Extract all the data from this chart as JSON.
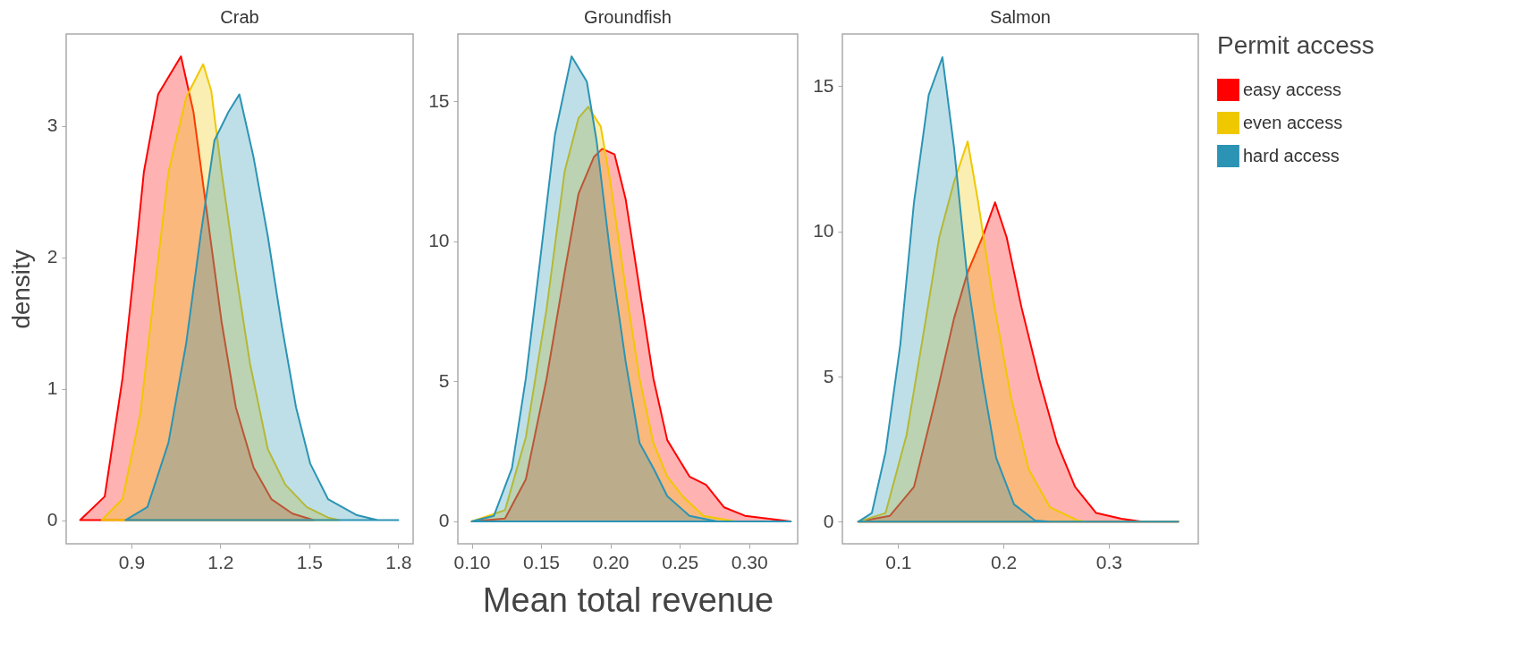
{
  "chart_data": [
    {
      "type": "area",
      "title": "Crab",
      "legend": "right",
      "ylabel": "density",
      "xlim": [
        0.68,
        1.85
      ],
      "ylim": [
        -0.18,
        3.7
      ],
      "xticks": [
        0.9,
        1.2,
        1.5,
        1.8
      ],
      "yticks": [
        0,
        1,
        2,
        3
      ],
      "series": [
        {
          "name": "easy access",
          "color": "#ff0000",
          "x": [
            0.727,
            0.81,
            0.87,
            0.906,
            0.942,
            0.99,
            1.067,
            1.109,
            1.157,
            1.204,
            1.252,
            1.312,
            1.372,
            1.443,
            1.515
          ],
          "values": [
            0,
            0.18,
            1.08,
            1.84,
            2.65,
            3.24,
            3.53,
            3.11,
            2.3,
            1.51,
            0.86,
            0.4,
            0.16,
            0.05,
            0
          ]
        },
        {
          "name": "even access",
          "color": "#f0c800",
          "x": [
            0.8,
            0.87,
            0.93,
            0.978,
            1.025,
            1.085,
            1.142,
            1.169,
            1.204,
            1.252,
            1.3,
            1.36,
            1.419,
            1.491,
            1.563,
            1.6
          ],
          "values": [
            0,
            0.16,
            0.81,
            1.75,
            2.65,
            3.22,
            3.47,
            3.27,
            2.65,
            1.89,
            1.19,
            0.54,
            0.27,
            0.1,
            0.02,
            0
          ]
        },
        {
          "name": "hard access",
          "color": "#2b94b4",
          "x": [
            0.88,
            0.954,
            1.025,
            1.085,
            1.133,
            1.18,
            1.228,
            1.264,
            1.312,
            1.36,
            1.407,
            1.455,
            1.503,
            1.563,
            1.658,
            1.73,
            1.8
          ],
          "values": [
            0,
            0.1,
            0.59,
            1.35,
            2.16,
            2.89,
            3.11,
            3.24,
            2.76,
            2.16,
            1.48,
            0.86,
            0.43,
            0.16,
            0.04,
            0,
            0
          ]
        }
      ]
    },
    {
      "type": "area",
      "title": "Groundfish",
      "legend": "right",
      "xlabel": "Mean total revenue",
      "xlim": [
        0.09,
        0.335
      ],
      "ylim": [
        -0.8,
        17.4
      ],
      "xticks": [
        {
          "value": 0.1,
          "label": "0.10"
        },
        0.15,
        {
          "value": 0.2,
          "label": "0.20"
        },
        0.25,
        {
          "value": 0.3,
          "label": "0.30"
        }
      ],
      "yticks": [
        0,
        5,
        10,
        15
      ],
      "series": [
        {
          "name": "easy access",
          "color": "#ff0000",
          "x": [
            0.1,
            0.124,
            0.139,
            0.154,
            0.167,
            0.177,
            0.188,
            0.194,
            0.203,
            0.211,
            0.221,
            0.231,
            0.241,
            0.257,
            0.269,
            0.282,
            0.297,
            0.313,
            0.33
          ],
          "values": [
            0,
            0.1,
            1.5,
            5.1,
            8.9,
            11.7,
            13,
            13.3,
            13.1,
            11.5,
            8.3,
            5.1,
            2.9,
            1.6,
            1.3,
            0.5,
            0.2,
            0.1,
            0
          ]
        },
        {
          "name": "even access",
          "color": "#f0c800",
          "x": [
            0.1,
            0.124,
            0.139,
            0.154,
            0.167,
            0.177,
            0.184,
            0.193,
            0.2,
            0.211,
            0.221,
            0.231,
            0.241,
            0.252,
            0.267,
            0.29,
            0.33
          ],
          "values": [
            0,
            0.4,
            3,
            7.6,
            12.5,
            14.4,
            14.8,
            14.1,
            12.1,
            8.3,
            5.1,
            2.8,
            1.6,
            0.9,
            0.2,
            0,
            0
          ]
        },
        {
          "name": "hard access",
          "color": "#2b94b4",
          "x": [
            0.1,
            0.116,
            0.129,
            0.139,
            0.149,
            0.16,
            0.172,
            0.183,
            0.19,
            0.2,
            0.211,
            0.221,
            0.231,
            0.241,
            0.257,
            0.277,
            0.33
          ],
          "values": [
            0,
            0.2,
            1.9,
            5.1,
            9.2,
            13.8,
            16.6,
            15.7,
            13.6,
            9.5,
            5.7,
            2.8,
            1.9,
            0.9,
            0.2,
            0,
            0
          ]
        }
      ]
    },
    {
      "type": "area",
      "title": "Salmon",
      "legend_title": "Permit access",
      "legend": "right",
      "xlim": [
        0.047,
        0.385
      ],
      "ylim": [
        -0.76,
        16.8
      ],
      "xticks": [
        0.1,
        0.2,
        0.3
      ],
      "yticks": [
        0,
        5,
        10,
        15
      ],
      "series": [
        {
          "name": "easy access",
          "color": "#ff0000",
          "x": [
            0.062,
            0.092,
            0.115,
            0.136,
            0.153,
            0.166,
            0.18,
            0.192,
            0.203,
            0.217,
            0.234,
            0.251,
            0.268,
            0.288,
            0.312,
            0.332,
            0.366
          ],
          "values": [
            0,
            0.2,
            1.2,
            4.3,
            7,
            8.6,
            9.8,
            11,
            9.8,
            7.4,
            4.9,
            2.7,
            1.2,
            0.3,
            0.1,
            0,
            0
          ]
        },
        {
          "name": "even access",
          "color": "#f0c800",
          "x": [
            0.062,
            0.088,
            0.108,
            0.125,
            0.139,
            0.153,
            0.166,
            0.176,
            0.19,
            0.207,
            0.224,
            0.244,
            0.271,
            0.278,
            0.366
          ],
          "values": [
            0,
            0.3,
            3,
            6.7,
            9.8,
            11.7,
            13.1,
            11,
            7.7,
            4.3,
            1.8,
            0.5,
            0.04,
            0,
            0
          ]
        },
        {
          "name": "hard access",
          "color": "#2b94b4",
          "x": [
            0.062,
            0.075,
            0.088,
            0.102,
            0.115,
            0.129,
            0.142,
            0.153,
            0.166,
            0.18,
            0.193,
            0.21,
            0.23,
            0.244,
            0.366
          ],
          "values": [
            0,
            0.3,
            2.4,
            6.1,
            11,
            14.7,
            16,
            12.9,
            8.3,
            4.9,
            2.2,
            0.6,
            0.04,
            0,
            0
          ]
        }
      ]
    }
  ]
}
